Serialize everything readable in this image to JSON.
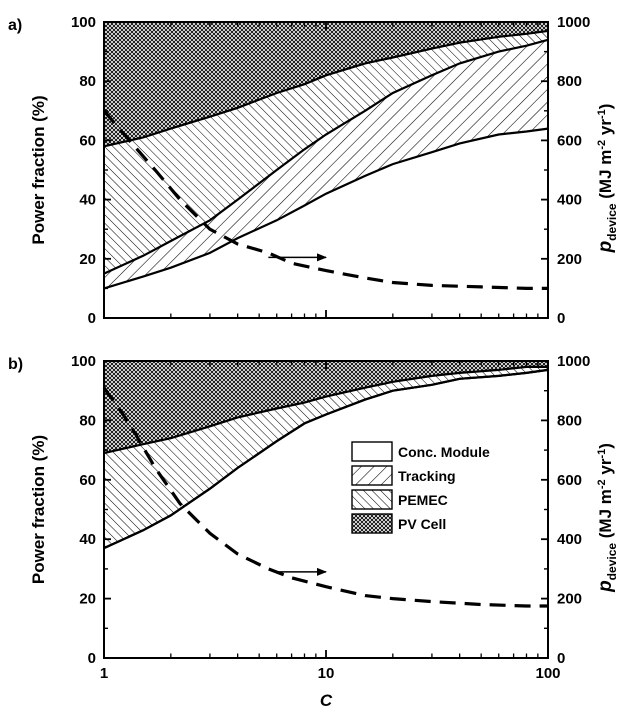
{
  "chart_data": [
    {
      "panel_label": "a)",
      "type": "area",
      "x_scale": "log",
      "xlim": [
        1,
        100
      ],
      "ylim": [
        0,
        100
      ],
      "y2lim": [
        0,
        1000
      ],
      "ylabel": "Power fraction (%)",
      "y2label_main": "p",
      "y2label_sub": "device",
      "y2label_unit_a": "(MJ m",
      "y2label_sup1": "-2",
      "y2label_unit_b": " yr",
      "y2label_sup2": "-1",
      "y2label_unit_c": ")",
      "x": [
        1,
        1.5,
        2,
        3,
        4,
        6,
        8,
        10,
        15,
        20,
        30,
        40,
        60,
        80,
        100
      ],
      "series": [
        {
          "name": "Conc. Module",
          "upper": [
            10,
            14,
            17,
            22,
            27,
            33,
            38,
            42,
            48,
            52,
            56,
            59,
            62,
            63,
            64
          ]
        },
        {
          "name": "Tracking",
          "upper": [
            15,
            21,
            26,
            33,
            40,
            50,
            57,
            62,
            70,
            76,
            82,
            86,
            90,
            92,
            94
          ]
        },
        {
          "name": "PEMEC",
          "upper": [
            58,
            61,
            64,
            68,
            71,
            76,
            79,
            82,
            86,
            88,
            91,
            93,
            95,
            96,
            97
          ]
        },
        {
          "name": "PV Cell",
          "upper": [
            100,
            100,
            100,
            100,
            100,
            100,
            100,
            100,
            100,
            100,
            100,
            100,
            100,
            100,
            100
          ]
        }
      ],
      "dashed_series": {
        "x": [
          1,
          1.3,
          1.7,
          2.2,
          3,
          4,
          5.5,
          7,
          10,
          15,
          20,
          30,
          50,
          80,
          100
        ],
        "y2": [
          700,
          600,
          500,
          400,
          300,
          250,
          220,
          185,
          160,
          135,
          120,
          110,
          105,
          100,
          100
        ]
      },
      "arrow": {
        "x_from": 5.5,
        "x_to": 10,
        "y2": 205
      }
    },
    {
      "panel_label": "b)",
      "type": "area",
      "x_scale": "log",
      "xlim": [
        1,
        100
      ],
      "ylim": [
        0,
        100
      ],
      "y2lim": [
        0,
        1000
      ],
      "ylabel": "Power fraction (%)",
      "xlabel": "C",
      "y2label_main": "p",
      "y2label_sub": "device",
      "y2label_unit_a": "(MJ m",
      "y2label_sup1": "-2",
      "y2label_unit_b": " yr",
      "y2label_sup2": "-1",
      "y2label_unit_c": ")",
      "x": [
        1,
        1.5,
        2,
        3,
        4,
        6,
        8,
        10,
        15,
        20,
        30,
        40,
        60,
        80,
        100
      ],
      "series": [
        {
          "name": "Conc. Module",
          "upper": [
            37,
            43,
            48,
            57,
            64,
            73,
            79,
            82,
            87,
            90,
            92,
            94,
            95,
            96,
            97
          ]
        },
        {
          "name": "Tracking",
          "upper": [
            37,
            43,
            48,
            57,
            64,
            73,
            79,
            82,
            87,
            90,
            92,
            94,
            95,
            96,
            97
          ]
        },
        {
          "name": "PEMEC",
          "upper": [
            69,
            72,
            74,
            78,
            81,
            84,
            86,
            88,
            91,
            93,
            95,
            96,
            97,
            98,
            98
          ]
        },
        {
          "name": "PV Cell",
          "upper": [
            100,
            100,
            100,
            100,
            100,
            100,
            100,
            100,
            100,
            100,
            100,
            100,
            100,
            100,
            100
          ]
        }
      ],
      "dashed_series": {
        "x": [
          1,
          1.3,
          1.7,
          2.2,
          3,
          4,
          5.5,
          7,
          10,
          15,
          20,
          30,
          50,
          80,
          100
        ],
        "y2": [
          910,
          790,
          640,
          520,
          420,
          350,
          300,
          270,
          240,
          210,
          200,
          190,
          180,
          175,
          175
        ]
      },
      "arrow": {
        "x_from": 6,
        "x_to": 10,
        "y2": 290
      }
    }
  ],
  "x_tick_labels": [
    "1",
    "10",
    "100"
  ],
  "y_tick_labels": [
    "0",
    "20",
    "40",
    "60",
    "80",
    "100"
  ],
  "y2_tick_labels": [
    "0",
    "200",
    "400",
    "600",
    "800",
    "1000"
  ],
  "legend": {
    "placement": "inside-right-panel-b",
    "items": [
      {
        "label": "Conc. Module",
        "pattern": "none"
      },
      {
        "label": "Tracking",
        "pattern": "forward-hatch"
      },
      {
        "label": "PEMEC",
        "pattern": "back-hatch"
      },
      {
        "label": "PV Cell",
        "pattern": "crosshatch"
      }
    ]
  }
}
